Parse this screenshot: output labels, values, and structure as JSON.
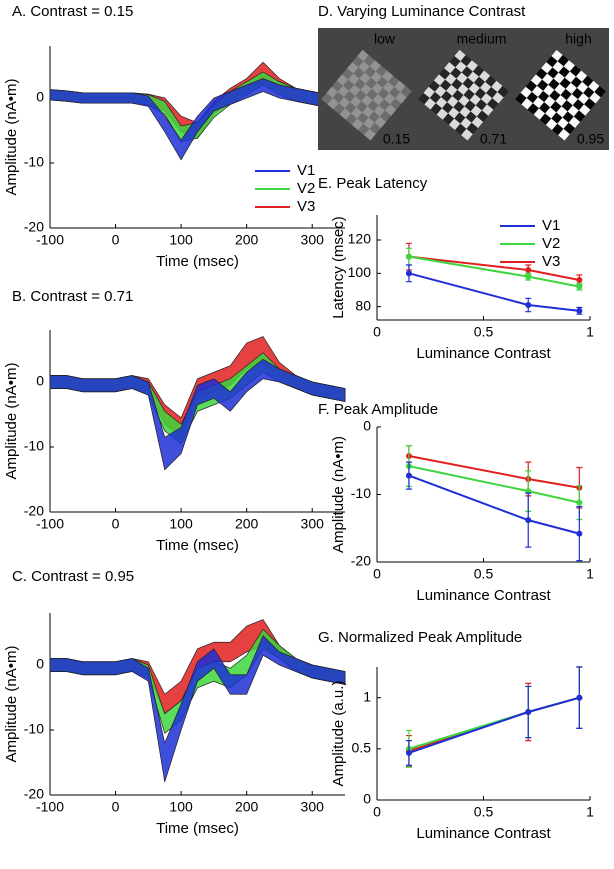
{
  "chart_data": [
    {
      "type": "band",
      "title": "A. Contrast = 0.15",
      "x_label": "Time (msec)",
      "y_label": "Amplitude (nA•m)",
      "x": [
        -100,
        -75,
        -50,
        -25,
        0,
        25,
        50,
        75,
        100,
        125,
        150,
        175,
        200,
        225,
        250,
        275,
        300,
        325,
        350
      ],
      "xlim": [
        -100,
        350
      ],
      "xticks": [
        -100,
        0,
        100,
        200,
        300
      ],
      "ylim": [
        -20,
        8
      ],
      "yticks": [
        -20,
        -10,
        0
      ],
      "legend": "lower right",
      "series": [
        {
          "name": "V1",
          "color": "#1f2fd6",
          "values": [
            0.5,
            0.3,
            0,
            0,
            0,
            0,
            -0.5,
            -4,
            -8,
            -4,
            -1,
            0,
            1,
            2,
            1,
            0.5,
            0,
            -0.5,
            -1
          ],
          "error": [
            0.8,
            0.8,
            0.8,
            0.8,
            0.8,
            0.8,
            0.8,
            1.2,
            1.5,
            1.2,
            1,
            1,
            1,
            1,
            1,
            1,
            1,
            1,
            1
          ]
        },
        {
          "name": "V2",
          "color": "#3ed63e",
          "values": [
            0.5,
            0.3,
            0,
            0,
            0,
            0,
            -0.3,
            -1.5,
            -5.5,
            -5,
            -2,
            0,
            1.5,
            3,
            1.5,
            0.5,
            0,
            -0.5,
            -1
          ],
          "error": [
            0.8,
            0.8,
            0.8,
            0.8,
            0.8,
            0.8,
            0.8,
            1,
            1.2,
            1.2,
            1,
            1,
            1,
            1,
            1,
            1,
            1,
            1,
            1
          ]
        },
        {
          "name": "V3",
          "color": "#e02020",
          "values": [
            0.5,
            0.3,
            0,
            0,
            0,
            0,
            -0.2,
            -1,
            -4,
            -5,
            -1.5,
            0.5,
            2,
            4,
            2,
            0.5,
            0,
            -0.5,
            -1
          ],
          "error": [
            0.8,
            0.8,
            0.8,
            0.8,
            0.8,
            0.8,
            0.8,
            1,
            1.2,
            1.2,
            1,
            1,
            1,
            1.5,
            1,
            1,
            1,
            1,
            1
          ]
        }
      ]
    },
    {
      "type": "band",
      "title": "B. Contrast = 0.71",
      "x_label": "Time (msec)",
      "y_label": "Amplitude (nA•m)",
      "x": [
        -100,
        -75,
        -50,
        -25,
        0,
        25,
        50,
        75,
        100,
        125,
        150,
        175,
        200,
        225,
        250,
        275,
        300,
        325,
        350
      ],
      "xlim": [
        -100,
        350
      ],
      "xticks": [
        -100,
        0,
        100,
        200,
        300
      ],
      "ylim": [
        -20,
        8
      ],
      "yticks": [
        -20,
        -10,
        0
      ],
      "series": [
        {
          "name": "V1",
          "color": "#1f2fd6",
          "values": [
            0,
            0,
            -0.5,
            -0.5,
            -0.5,
            0,
            -1,
            -11,
            -9,
            -2,
            -1,
            -3,
            0,
            2,
            1,
            0,
            -1,
            -1.5,
            -2
          ],
          "error": [
            1,
            1,
            1,
            1,
            1,
            1,
            1,
            2.5,
            2,
            1.5,
            1.5,
            1.5,
            1.5,
            1.5,
            1,
            1,
            1,
            1,
            1
          ]
        },
        {
          "name": "V2",
          "color": "#3ed63e",
          "values": [
            0,
            0,
            -0.5,
            -0.5,
            -0.5,
            0,
            -1,
            -6,
            -8,
            -3,
            -2,
            -1,
            1,
            3,
            1,
            0,
            -1,
            -1.5,
            -2
          ],
          "error": [
            1,
            1,
            1,
            1,
            1,
            1,
            1,
            1.5,
            1.5,
            1.5,
            1.5,
            1.5,
            1.5,
            1.5,
            1,
            1,
            1,
            1,
            1
          ]
        },
        {
          "name": "V3",
          "color": "#e02020",
          "values": [
            0,
            0,
            -0.5,
            -0.5,
            -0.5,
            0,
            -0.5,
            -5,
            -7,
            -1,
            0,
            1,
            4,
            5,
            2,
            0,
            -1,
            -1.5,
            -2
          ],
          "error": [
            1,
            1,
            1,
            1,
            1,
            1,
            1,
            1.5,
            1.5,
            1.5,
            1.5,
            1.5,
            2,
            2,
            1,
            1,
            1,
            1,
            1
          ]
        }
      ]
    },
    {
      "type": "band",
      "title": "C. Contrast = 0.95",
      "x_label": "Time (msec)",
      "y_label": "Amplitude (nA•m)",
      "x": [
        -100,
        -75,
        -50,
        -25,
        0,
        25,
        50,
        75,
        100,
        125,
        150,
        175,
        200,
        225,
        250,
        275,
        300,
        325,
        350
      ],
      "xlim": [
        -100,
        350
      ],
      "xticks": [
        -100,
        0,
        100,
        200,
        300
      ],
      "ylim": [
        -20,
        8
      ],
      "yticks": [
        -20,
        -10,
        0
      ],
      "series": [
        {
          "name": "V1",
          "color": "#1f2fd6",
          "values": [
            0,
            0,
            -0.5,
            -0.5,
            -0.5,
            0,
            -1.5,
            -15,
            -8,
            -1,
            1,
            -3,
            -3,
            3,
            1,
            0,
            -1,
            -1.5,
            -2
          ],
          "error": [
            1,
            1,
            1,
            1,
            1,
            1,
            1,
            3,
            2,
            1.5,
            1.5,
            1.5,
            1.5,
            1.5,
            1,
            1,
            1,
            1,
            1
          ]
        },
        {
          "name": "V2",
          "color": "#3ed63e",
          "values": [
            0,
            0,
            -0.5,
            -0.5,
            -0.5,
            0,
            -1,
            -9,
            -7,
            -2,
            -1,
            -2,
            0,
            4,
            2,
            0,
            -1,
            -1.5,
            -2
          ],
          "error": [
            1,
            1,
            1,
            1,
            1,
            1,
            1,
            1.5,
            1.5,
            1.5,
            1.5,
            1.5,
            1.5,
            1.5,
            1,
            1,
            1,
            1,
            1
          ]
        },
        {
          "name": "V3",
          "color": "#e02020",
          "values": [
            0,
            0,
            -0.5,
            -0.5,
            -0.5,
            0,
            -0.5,
            -6,
            -4,
            1,
            2,
            2,
            4,
            5,
            2,
            0,
            -1,
            -1.5,
            -2
          ],
          "error": [
            1,
            1,
            1,
            1,
            1,
            1,
            1,
            1.5,
            1.5,
            1.5,
            1.5,
            1.5,
            2,
            2,
            1,
            1,
            1,
            1,
            1
          ]
        }
      ]
    },
    {
      "type": "checkerboard",
      "title": "D. Varying Luminance Contrast",
      "labels": [
        "low",
        "medium",
        "high"
      ],
      "contrasts": [
        0.15,
        0.71,
        0.95
      ]
    },
    {
      "type": "errorbar",
      "title": "E. Peak Latency",
      "x_label": "Luminance Contrast",
      "y_label": "Latency (msec)",
      "x": [
        0.15,
        0.71,
        0.95
      ],
      "xlim": [
        0,
        1
      ],
      "xticks": [
        0,
        0.5,
        1
      ],
      "ylim": [
        72,
        135
      ],
      "yticks": [
        80,
        100,
        120
      ],
      "legend": "upper right",
      "series": [
        {
          "name": "V1",
          "color": "#1f2fd6",
          "values": [
            100,
            81,
            77.5
          ],
          "error": [
            5,
            4,
            2
          ]
        },
        {
          "name": "V2",
          "color": "#3ed63e",
          "values": [
            110,
            98,
            92
          ],
          "error": [
            5,
            2,
            2
          ]
        },
        {
          "name": "V3",
          "color": "#e02020",
          "values": [
            110,
            102,
            96
          ],
          "error": [
            8,
            3,
            3
          ]
        }
      ]
    },
    {
      "type": "errorbar",
      "title": "F. Peak Amplitude",
      "x_label": "Luminance Contrast",
      "y_label": "Amplitude (nA•m)",
      "x": [
        0.15,
        0.71,
        0.95
      ],
      "xlim": [
        0,
        1
      ],
      "xticks": [
        0,
        0.5,
        1
      ],
      "ylim": [
        -20,
        0
      ],
      "yticks": [
        -20,
        -10,
        0
      ],
      "series": [
        {
          "name": "V1",
          "color": "#1f2fd6",
          "values": [
            -7.2,
            -13.8,
            -15.8
          ],
          "error": [
            2,
            4,
            4
          ]
        },
        {
          "name": "V2",
          "color": "#3ed63e",
          "values": [
            -5.8,
            -9.5,
            -11.2
          ],
          "error": [
            3,
            3,
            2.5
          ]
        },
        {
          "name": "V3",
          "color": "#e02020",
          "values": [
            -4.3,
            -7.7,
            -9
          ],
          "error": [
            1.5,
            2.5,
            3
          ]
        }
      ]
    },
    {
      "type": "errorbar",
      "title": "G. Normalized Peak Amplitude",
      "x_label": "Luminance Contrast",
      "y_label": "Amplitude (a.u.)",
      "x": [
        0.15,
        0.71,
        0.95
      ],
      "xlim": [
        0,
        1
      ],
      "xticks": [
        0,
        0.5,
        1
      ],
      "ylim": [
        0,
        1.3
      ],
      "yticks": [
        0,
        0.5,
        1
      ],
      "series": [
        {
          "name": "V1",
          "color": "#1f2fd6",
          "values": [
            0.46,
            0.86,
            1
          ],
          "error": [
            0.12,
            0.25,
            0.3
          ]
        },
        {
          "name": "V2",
          "color": "#3ed63e",
          "values": [
            0.5,
            0.86,
            1
          ],
          "error": [
            0.18,
            0.25,
            0.3
          ]
        },
        {
          "name": "V3",
          "color": "#e02020",
          "values": [
            0.48,
            0.86,
            1
          ],
          "error": [
            0.15,
            0.28,
            0.3
          ]
        }
      ]
    }
  ]
}
